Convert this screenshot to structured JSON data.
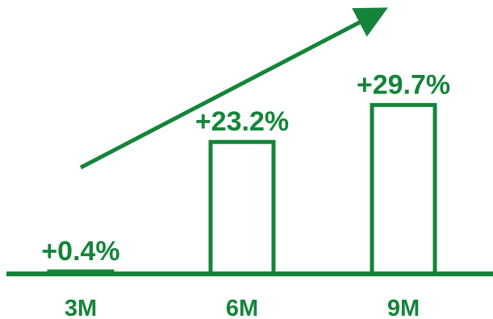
{
  "chart_data": {
    "type": "bar",
    "categories": [
      "3M",
      "6M",
      "9M"
    ],
    "values": [
      0.4,
      23.2,
      29.7
    ],
    "value_labels": [
      "+0.4%",
      "+23.2%",
      "+29.7%"
    ],
    "title": "",
    "xlabel": "",
    "ylabel": "",
    "ylim": [
      0,
      34
    ],
    "grid": false,
    "legend": "none",
    "bar_style": "outline",
    "trend_arrow": "up"
  },
  "colors": {
    "accent": "#15843A",
    "background": "#FFFFFF"
  }
}
